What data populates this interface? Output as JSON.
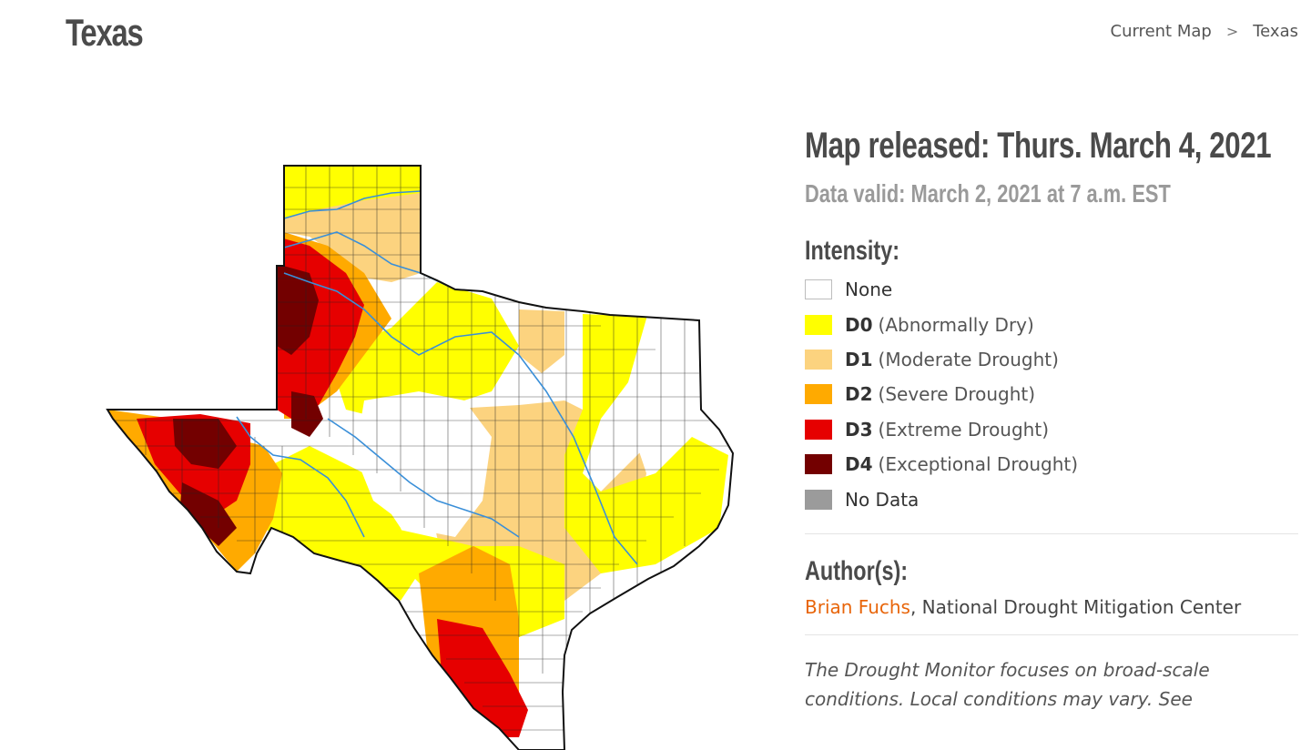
{
  "header": {
    "title": "Texas",
    "breadcrumb": [
      {
        "label": "Current Map"
      },
      {
        "label": ">"
      },
      {
        "label": "Texas"
      }
    ]
  },
  "info": {
    "released": "Map released: Thurs. March 4, 2021",
    "valid": "Data valid: March 2, 2021 at 7 a.m. EST",
    "intensity_heading": "Intensity:",
    "legend": [
      {
        "code": "",
        "label": "None",
        "color": "#ffffff",
        "border": "#bdbdbd"
      },
      {
        "code": "D0",
        "label": "(Abnormally Dry)",
        "color": "#ffff00"
      },
      {
        "code": "D1",
        "label": "(Moderate Drought)",
        "color": "#fcd37f"
      },
      {
        "code": "D2",
        "label": "(Severe Drought)",
        "color": "#ffaa00"
      },
      {
        "code": "D3",
        "label": "(Extreme Drought)",
        "color": "#e60000"
      },
      {
        "code": "D4",
        "label": "(Exceptional Drought)",
        "color": "#730000"
      },
      {
        "code": "",
        "label": "No Data",
        "color": "#9b9b9b"
      }
    ],
    "author_heading": "Author(s):",
    "author_name": "Brian Fuchs",
    "author_org": ", National Drought Mitigation Center",
    "disclaimer": "The Drought Monitor focuses on broad-scale conditions. Local conditions may vary. See"
  },
  "map": {
    "name": "texas-drought-map",
    "colors": {
      "none": "#ffffff",
      "d0": "#ffff00",
      "d1": "#fcd37f",
      "d2": "#ffaa00",
      "d3": "#e60000",
      "d4": "#730000",
      "river": "#3a8fd8",
      "border": "#111111",
      "county": "#222222"
    }
  }
}
